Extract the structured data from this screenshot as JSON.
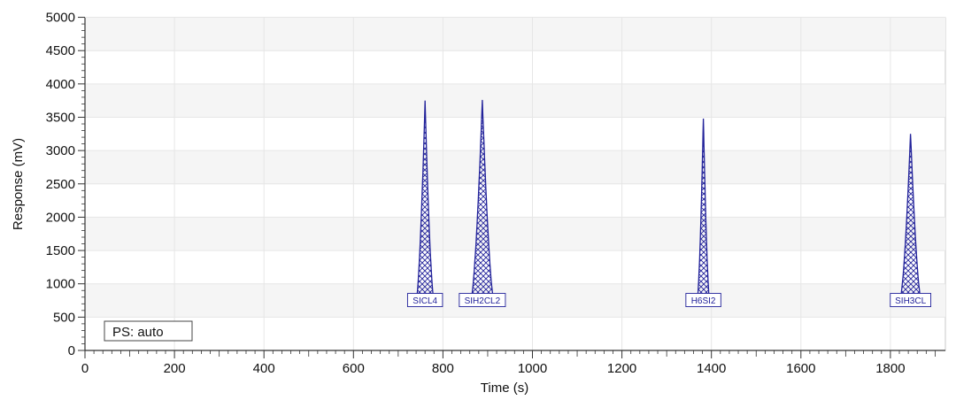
{
  "chart_data": {
    "type": "area",
    "xlabel": "Time (s)",
    "ylabel": "Response (mV)",
    "xlim": [
      0,
      1920
    ],
    "ylim": [
      0,
      5000
    ],
    "x_ticks": [
      0,
      200,
      400,
      600,
      800,
      1000,
      1200,
      1400,
      1600,
      1800
    ],
    "y_ticks": [
      0,
      500,
      1000,
      1500,
      2000,
      2500,
      3000,
      3500,
      4000,
      4500,
      5000
    ],
    "baseline": 0,
    "peak_base": 750,
    "grid": true,
    "peaks": [
      {
        "label": "SICL4",
        "apex_time": 760,
        "height": 3750,
        "width": 40
      },
      {
        "label": "SIH2CL2",
        "apex_time": 888,
        "height": 3760,
        "width": 52
      },
      {
        "label": "H6SI2",
        "apex_time": 1382,
        "height": 3480,
        "width": 28
      },
      {
        "label": "SIH3CL",
        "apex_time": 1845,
        "height": 3250,
        "width": 48
      }
    ],
    "annotation": "PS: auto",
    "colors": {
      "peak": "#22229a",
      "axis": "#333333",
      "grid": "#e6e6e6"
    }
  }
}
